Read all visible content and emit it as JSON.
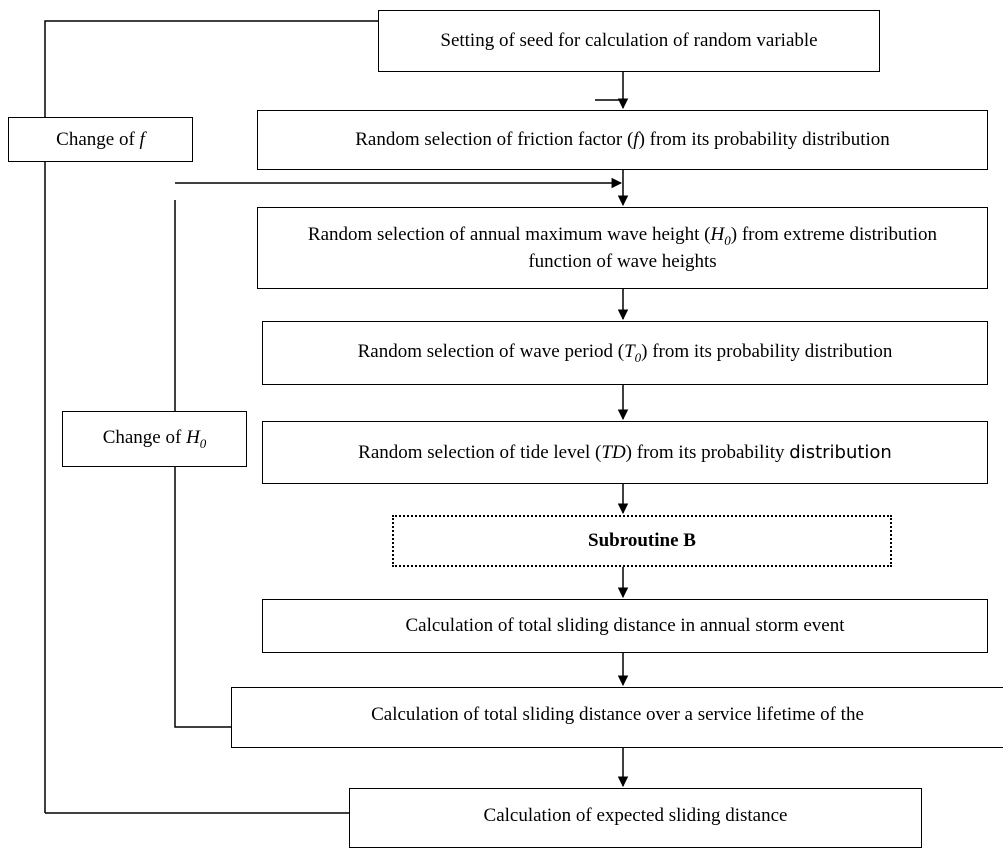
{
  "nodes": [
    {
      "text": [
        "Setting of seed for calculation of random variable"
      ]
    },
    {
      "text": [
        "Random selection of friction factor (",
        "f",
        ") from its probability distribution"
      ]
    },
    {
      "text": [
        "Random selection of annual maximum wave height (",
        "H",
        "0",
        ") from extreme distribution function of wave heights"
      ]
    },
    {
      "text": [
        "Random selection of wave period (",
        "T",
        "0",
        ") from its probability distribution"
      ]
    },
    {
      "text": [
        "Random selection of tide level (",
        "TD",
        ") from its probability ",
        "distribution"
      ]
    },
    {
      "text": [
        "Subroutine B"
      ]
    },
    {
      "text": [
        "Calculation of total sliding distance in annual storm event"
      ]
    },
    {
      "text": [
        "Calculation of total sliding distance over a service lifetime of the"
      ]
    },
    {
      "text": [
        "Calculation of expected sliding distance"
      ]
    }
  ],
  "loops": [
    {
      "text": [
        "Change of ",
        "f"
      ]
    },
    {
      "text": [
        "Change of ",
        "H",
        "0"
      ]
    }
  ]
}
